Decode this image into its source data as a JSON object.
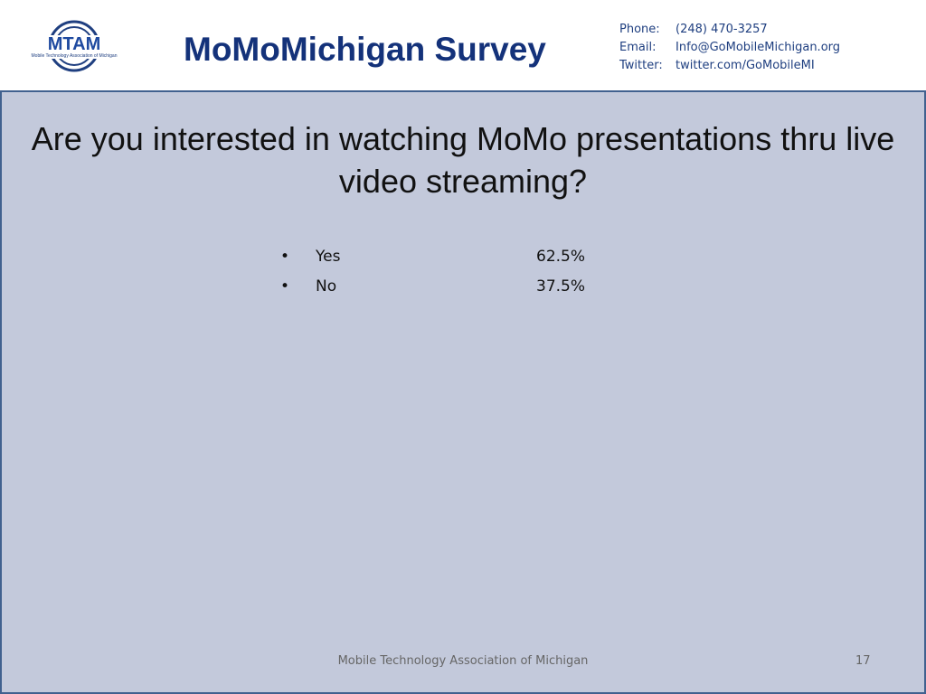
{
  "header": {
    "logo": {
      "title": "MTAM",
      "subtitle": "Mobile Technology Association of Michigan"
    },
    "title": "MoMoMichigan Survey",
    "contact": [
      {
        "label": "Phone:",
        "value": "(248) 470-3257"
      },
      {
        "label": "Email:",
        "value": "Info@GoMobileMichigan.org"
      },
      {
        "label": "Twitter:",
        "value": "twitter.com/GoMobileMI"
      }
    ]
  },
  "question": "Are you interested in watching MoMo presentations thru live video streaming?",
  "answers": [
    {
      "label": "Yes",
      "value": "62.5%"
    },
    {
      "label": "No",
      "value": "37.5%"
    }
  ],
  "footer": {
    "text": "Mobile Technology Association of Michigan",
    "page": "17"
  }
}
